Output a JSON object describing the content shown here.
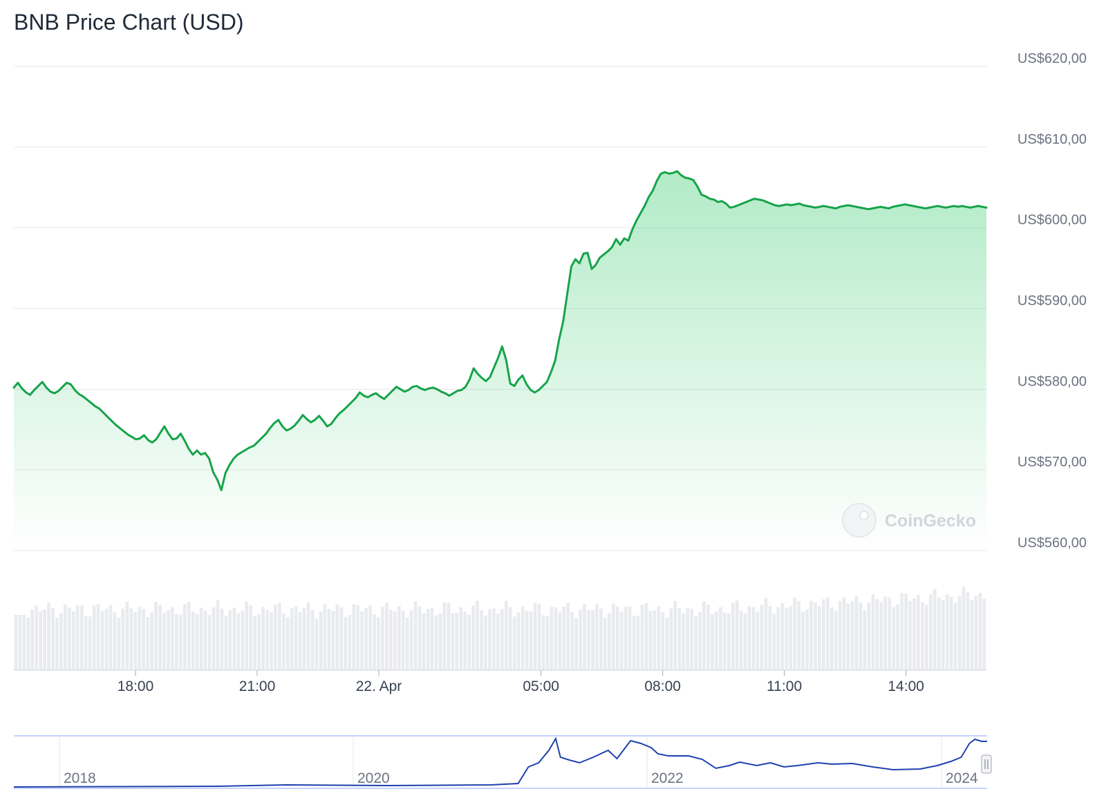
{
  "chart_data": {
    "type": "line",
    "title": "BNB Price Chart (USD)",
    "xlabel": "",
    "ylabel": "",
    "ylim": [
      560,
      620
    ],
    "y_ticks": [
      "US$620,00",
      "US$610,00",
      "US$600,00",
      "US$590,00",
      "US$580,00",
      "US$570,00",
      "US$560,00"
    ],
    "y_tick_values": [
      620,
      610,
      600,
      590,
      580,
      570,
      560
    ],
    "x_range_hours": [
      -2.9,
      15.1
    ],
    "x_ticks": [
      {
        "label": "18:00",
        "hour": -1
      },
      {
        "label": "21:00",
        "hour": 2
      },
      {
        "label": "22. Apr",
        "hour": 5
      },
      {
        "label": "05:00",
        "hour": 9
      },
      {
        "label": "08:00",
        "hour": 12
      },
      {
        "label": "11:00",
        "hour": 15
      },
      {
        "label": "14:00",
        "hour": 18
      }
    ],
    "grid": true,
    "line_color": "#16a34a",
    "fill_color": "#22c55e",
    "series": [
      {
        "x": [
          0,
          0.1,
          0.2,
          0.3,
          0.4,
          0.5,
          0.6,
          0.7,
          0.8,
          0.9,
          1.0,
          1.1,
          1.2,
          1.3,
          1.4,
          1.5,
          1.6,
          1.7,
          1.8,
          1.9,
          2.0,
          2.1,
          2.2,
          2.3,
          2.4,
          2.5,
          2.6,
          2.7,
          2.8,
          2.9,
          3.0,
          3.1,
          3.2,
          3.3,
          3.4,
          3.5,
          3.6,
          3.7,
          3.8,
          3.9,
          4.0,
          4.1,
          4.2,
          4.3,
          4.4,
          4.5,
          4.6,
          4.7,
          4.8,
          4.9,
          5.0,
          5.1,
          5.2,
          5.3,
          5.4,
          5.5,
          5.6,
          5.7,
          5.8,
          5.9,
          6.0,
          6.1,
          6.2,
          6.3,
          6.4,
          6.5,
          6.6,
          6.7,
          6.8,
          6.9,
          7.0,
          7.1,
          7.2,
          7.3,
          7.4,
          7.5,
          7.6,
          7.7,
          7.8,
          7.9,
          8.0,
          8.1,
          8.2,
          8.3,
          8.4,
          8.5,
          8.6,
          8.7,
          8.8,
          8.9,
          9.0,
          9.1,
          9.2,
          9.3,
          9.4,
          9.5,
          9.6,
          9.7,
          9.8,
          9.9,
          10.0,
          10.1,
          10.2,
          10.3,
          10.4,
          10.5,
          10.6,
          10.7,
          10.8,
          10.9,
          11.0,
          11.1,
          11.2,
          11.3,
          11.4,
          11.5,
          11.6,
          11.7,
          11.8,
          11.9,
          12.0,
          12.1,
          12.2,
          12.3,
          12.4,
          12.5,
          12.6,
          12.7,
          12.8,
          12.9,
          13.0,
          13.1,
          13.2,
          13.3,
          13.4,
          13.5,
          13.6,
          13.7,
          13.8,
          13.9,
          14.0,
          14.1,
          14.2,
          14.3,
          14.4,
          14.5,
          14.6,
          14.7,
          14.8,
          14.9,
          15.0,
          15.1,
          15.2,
          15.3,
          15.4,
          15.5,
          15.6,
          15.7,
          15.8,
          15.9,
          16.0,
          16.1,
          16.2,
          16.3,
          16.4,
          16.5,
          16.6,
          16.7,
          16.8,
          16.9,
          17.0,
          17.1,
          17.2,
          17.3,
          17.4,
          17.5,
          17.6,
          17.7,
          17.8,
          17.9,
          18.0,
          18.1,
          18.2,
          18.3,
          18.4,
          18.5,
          18.6,
          18.7,
          18.8,
          18.9,
          19.0,
          19.1,
          19.2,
          19.3,
          19.4,
          19.5,
          19.6,
          19.7,
          19.8,
          19.9,
          20.0,
          20.1,
          20.2,
          20.3,
          20.4,
          20.5,
          20.6,
          20.7,
          20.8,
          20.9,
          21.0,
          21.1,
          21.2,
          21.3,
          21.4,
          21.5,
          21.6,
          21.7,
          21.8,
          21.9,
          22.0,
          22.1,
          22.2,
          22.3,
          22.4,
          22.5,
          22.6,
          22.7,
          22.8,
          22.9,
          23.0,
          23.1,
          23.2,
          23.3,
          23.4,
          23.5,
          23.6,
          23.7,
          23.8,
          23.9
        ],
        "values": [
          580.2,
          580.8,
          580.1,
          579.6,
          579.3,
          579.9,
          580.4,
          580.9,
          580.2,
          579.7,
          579.5,
          579.8,
          580.3,
          580.8,
          580.6,
          579.9,
          579.4,
          579.1,
          578.7,
          578.3,
          577.9,
          577.6,
          577.1,
          576.6,
          576.1,
          575.6,
          575.2,
          574.8,
          574.4,
          574.1,
          573.8,
          573.9,
          574.3,
          573.7,
          573.4,
          573.8,
          574.6,
          575.4,
          574.5,
          573.8,
          573.9,
          574.5,
          573.6,
          572.6,
          571.9,
          572.4,
          571.9,
          572.1,
          571.4,
          569.7,
          568.8,
          567.5,
          569.6,
          570.6,
          571.4,
          571.9,
          572.2,
          572.5,
          572.8,
          573.0,
          573.5,
          574.0,
          574.5,
          575.2,
          575.8,
          576.2,
          575.4,
          574.9,
          575.1,
          575.5,
          576.1,
          576.8,
          576.3,
          575.9,
          576.2,
          576.7,
          576.1,
          575.4,
          575.7,
          576.4,
          577.0,
          577.4,
          577.9,
          578.4,
          578.9,
          579.6,
          579.2,
          579.0,
          579.3,
          579.5,
          579.1,
          578.8,
          579.3,
          579.8,
          580.3,
          580.0,
          579.7,
          579.9,
          580.3,
          580.4,
          580.1,
          579.9,
          580.1,
          580.2,
          580.0,
          579.7,
          579.5,
          579.2,
          579.5,
          579.8,
          579.9,
          580.3,
          581.2,
          582.6,
          581.9,
          581.4,
          581.0,
          581.5,
          582.7,
          583.9,
          585.3,
          583.6,
          580.7,
          580.4,
          581.2,
          581.7,
          580.6,
          579.9,
          579.6,
          579.9,
          580.4,
          580.9,
          582.1,
          583.5,
          586.2,
          588.4,
          591.8,
          595.2,
          596.1,
          595.6,
          596.8,
          596.9,
          594.9,
          595.4,
          596.3,
          596.7,
          597.1,
          597.6,
          598.6,
          597.9,
          598.7,
          598.4,
          599.8,
          600.9,
          601.8,
          602.7,
          603.8,
          604.6,
          605.8,
          606.7,
          606.9,
          606.7,
          606.8,
          607.0,
          606.5,
          606.2,
          606.1,
          605.9,
          605.1,
          604.1,
          603.9,
          603.6,
          603.5,
          603.2,
          603.3,
          603.0,
          602.5,
          602.6,
          602.8,
          603.0,
          603.2,
          603.4,
          603.6,
          603.5,
          603.4,
          603.2,
          603.0,
          602.8,
          602.7,
          602.8,
          602.9,
          602.8,
          602.9,
          603.0,
          602.8,
          602.7,
          602.6,
          602.5,
          602.6,
          602.7,
          602.6,
          602.5,
          602.4,
          602.6,
          602.7,
          602.8,
          602.7,
          602.6,
          602.5,
          602.4,
          602.3,
          602.4,
          602.5,
          602.6,
          602.5,
          602.4,
          602.6,
          602.7,
          602.8,
          602.9,
          602.8,
          602.7,
          602.6,
          602.5,
          602.4,
          602.5,
          602.6,
          602.7,
          602.6,
          602.5,
          602.6,
          602.7,
          602.6,
          602.7,
          602.6,
          602.5,
          602.6,
          602.7,
          602.6,
          602.5
        ]
      }
    ],
    "navigator": {
      "x_ticks": [
        "2018",
        "2020",
        "2022",
        "2024"
      ],
      "line_color": "#1e40af"
    },
    "watermark": "CoinGecko"
  }
}
